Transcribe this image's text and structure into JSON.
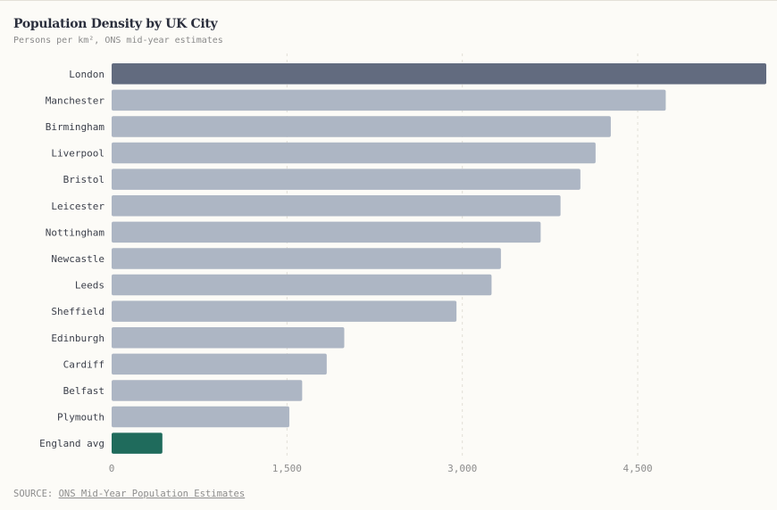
{
  "title": "Population Density by UK City",
  "subtitle": "Persons per km², ONS mid-year estimates",
  "source": {
    "prefix": "SOURCE: ",
    "link_text": "ONS Mid-Year Population Estimates"
  },
  "colors": {
    "highlight": "#626b7f",
    "default": "#adb6c4",
    "average": "#1f6b5c",
    "background": "#fcfbf7"
  },
  "chart_data": {
    "type": "bar",
    "orientation": "horizontal",
    "title": "Population Density by UK City",
    "subtitle": "Persons per km², ONS mid-year estimates",
    "categories": [
      "London",
      "Manchester",
      "Birmingham",
      "Liverpool",
      "Bristol",
      "Leicester",
      "Nottingham",
      "Newcastle",
      "Leeds",
      "Sheffield",
      "Edinburgh",
      "Cardiff",
      "Belfast",
      "Plymouth",
      "England avg"
    ],
    "values": [
      5600,
      4740,
      4270,
      4140,
      4010,
      3840,
      3670,
      3330,
      3250,
      2950,
      1990,
      1840,
      1630,
      1520,
      434
    ],
    "highlight": {
      "London": "highlight",
      "England avg": "average"
    },
    "xlim": [
      0,
      5600
    ],
    "xticks": [
      0,
      1500,
      3000,
      4500
    ],
    "xtick_labels": [
      "0",
      "1,500",
      "3,000",
      "4,500"
    ],
    "grid": "vertical dashed"
  }
}
